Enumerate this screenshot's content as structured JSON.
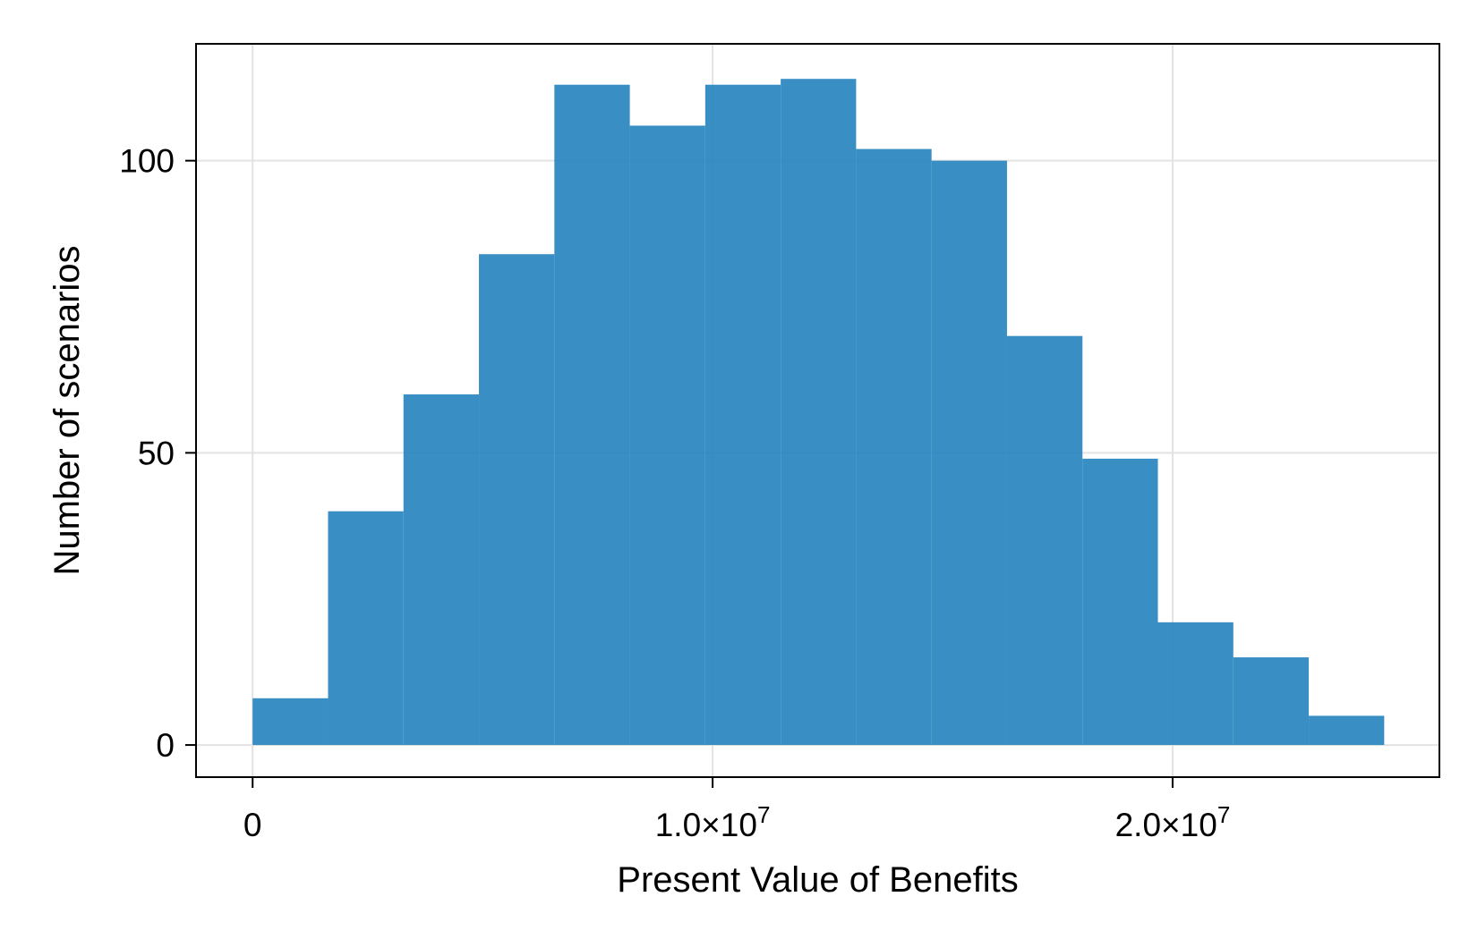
{
  "chart_data": {
    "type": "bar",
    "title": "",
    "xlabel": "Present Value of Benefits",
    "ylabel": "Number of scenarios",
    "bin_edges": [
      0,
      1640000,
      3280000,
      4920000,
      6560000,
      8200000,
      9840000,
      11480000,
      13120000,
      14760000,
      16400000,
      18040000,
      19680000,
      21320000,
      22960000,
      24600000
    ],
    "values": [
      8,
      40,
      60,
      84,
      113,
      106,
      113,
      114,
      102,
      100,
      70,
      49,
      21,
      15,
      5
    ],
    "xlim": [
      -1230000,
      25800000
    ],
    "ylim": [
      -5.5,
      120
    ],
    "xticks": [
      {
        "value": 0,
        "mantissa": "0",
        "exponent": ""
      },
      {
        "value": 10000000,
        "mantissa": "1.0×10",
        "exponent": "7"
      },
      {
        "value": 20000000,
        "mantissa": "2.0×10",
        "exponent": "7"
      }
    ],
    "yticks": [
      {
        "value": 0,
        "label": "0"
      },
      {
        "value": 50,
        "label": "50"
      },
      {
        "value": 100,
        "label": "100"
      }
    ],
    "grid": true,
    "legend": "none",
    "colors": {
      "bar": "#2a86c0",
      "grid": "#e3e3e3",
      "axis": "#000000"
    }
  }
}
